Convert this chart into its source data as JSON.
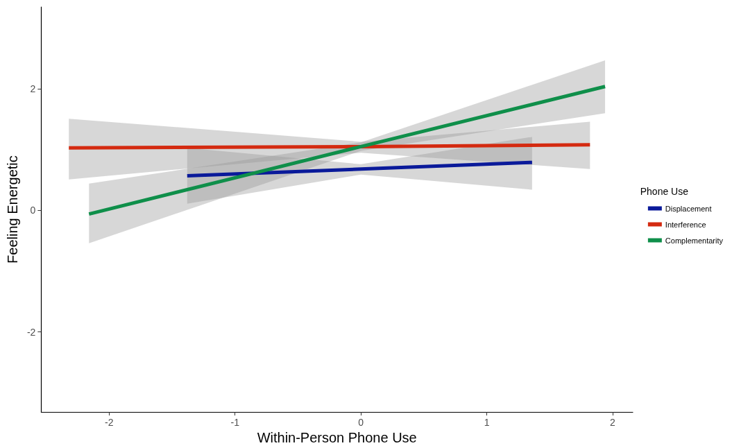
{
  "chart_data": {
    "type": "line",
    "xlabel": "Within-Person Phone Use",
    "ylabel": "Feeling Energetic",
    "legend_title": "Phone Use",
    "legend": "right",
    "grid": false,
    "marker": "none",
    "line_style": "solid",
    "xlim": [
      -2.54,
      2.16
    ],
    "xticks": [
      -2,
      -1,
      0,
      1,
      2
    ],
    "ylim": [
      -3.32,
      3.35
    ],
    "yticks": [
      -2,
      0,
      2
    ],
    "series": [
      {
        "name": "Displacement",
        "color": "#0a1a9a",
        "x": [
          -1.38,
          0,
          1.36
        ],
        "values": [
          0.57,
          0.68,
          0.79
        ],
        "lower": [
          0.11,
          0.59,
          0.34
        ],
        "upper": [
          1.03,
          0.76,
          1.21
        ]
      },
      {
        "name": "Interference",
        "color": "#d42a10",
        "x": [
          -2.32,
          0,
          1.82
        ],
        "values": [
          1.03,
          1.05,
          1.08
        ],
        "lower": [
          0.51,
          0.95,
          0.68
        ],
        "upper": [
          1.51,
          1.13,
          1.46
        ]
      },
      {
        "name": "Complementarity",
        "color": "#0f8f4a",
        "x": [
          -2.16,
          0,
          1.94
        ],
        "values": [
          -0.06,
          1.05,
          2.04
        ],
        "lower": [
          -0.54,
          0.98,
          1.6
        ],
        "upper": [
          0.44,
          1.12,
          2.47
        ]
      }
    ]
  }
}
